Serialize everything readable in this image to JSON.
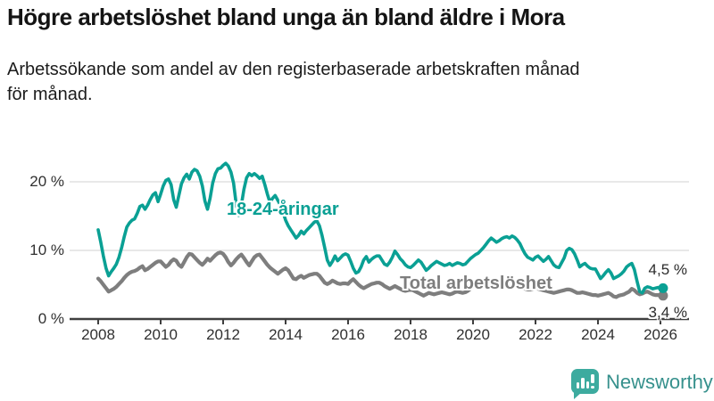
{
  "header": {
    "title": "Högre arbetslöshet bland unga än bland äldre i Mora",
    "subtitle_line1": "Arbetssökande som andel av den registerbaserade arbetskraften månad",
    "subtitle_line2": "för månad."
  },
  "footer": {
    "brand": "Newsworthy",
    "logo_icon": "bar-chart-speech-bubble-icon"
  },
  "colors": {
    "youth_line": "#0aa094",
    "total_line": "#7e7e7e",
    "gridline": "#e0e0e0",
    "axis": "#3f3f3f",
    "brand_icon_teal": "#3dab9f",
    "brand_wordmark": "#37918d"
  },
  "chart_data": {
    "type": "line",
    "title": "Högre arbetslöshet bland unga än bland äldre i Mora",
    "subtitle": "Arbetssökande som andel av den registerbaserade arbetskraften månad för månad.",
    "x_unit": "month",
    "x_start": "2008-01",
    "x_end": "2026-02",
    "xlabel": "",
    "ylabel": "",
    "ylim": [
      0,
      24
    ],
    "grid": "horizontal",
    "legend_position": "inline-labels",
    "x_ticks": [
      2008,
      2010,
      2012,
      2014,
      2016,
      2018,
      2020,
      2022,
      2024,
      2026
    ],
    "y_ticks": [
      {
        "value": 0,
        "label": "0 %"
      },
      {
        "value": 10,
        "label": "10 %"
      },
      {
        "value": 20,
        "label": "20 %"
      }
    ],
    "series": [
      {
        "name": "18-24-åringar",
        "color": "#0aa094",
        "stroke_width": 3.6,
        "end_label": "4,5 %",
        "end_value": 4.5,
        "values": [
          13.0,
          11.2,
          9.2,
          7.4,
          6.3,
          6.9,
          7.4,
          8.0,
          9.0,
          10.4,
          12.0,
          13.4,
          14.0,
          14.4,
          14.6,
          15.4,
          16.4,
          16.6,
          16.0,
          16.6,
          17.4,
          18.1,
          18.4,
          17.1,
          18.2,
          19.4,
          20.2,
          20.4,
          19.6,
          17.4,
          16.3,
          18.0,
          19.7,
          20.6,
          21.1,
          20.4,
          21.4,
          21.8,
          21.6,
          20.8,
          19.4,
          17.2,
          16.0,
          17.6,
          19.8,
          21.2,
          21.9,
          22.0,
          22.4,
          22.7,
          22.3,
          21.4,
          19.8,
          16.8,
          15.1,
          16.6,
          18.9,
          20.6,
          21.2,
          20.9,
          21.2,
          20.9,
          20.5,
          20.8,
          19.6,
          18.2,
          17.0,
          17.6,
          18.0,
          17.3,
          16.6,
          15.6,
          14.4,
          13.6,
          13.0,
          12.4,
          11.8,
          12.2,
          12.8,
          12.4,
          12.9,
          13.3,
          13.7,
          14.1,
          14.3,
          13.6,
          12.2,
          10.4,
          8.6,
          7.8,
          8.4,
          9.2,
          8.5,
          8.9,
          9.3,
          9.5,
          9.3,
          8.4,
          7.4,
          6.7,
          6.9,
          7.6,
          8.6,
          9.1,
          8.3,
          8.7,
          9.0,
          9.2,
          9.2,
          8.6,
          8.0,
          7.8,
          8.3,
          9.0,
          9.9,
          9.4,
          8.8,
          8.4,
          7.9,
          7.6,
          7.5,
          7.8,
          8.2,
          8.6,
          8.3,
          7.7,
          7.1,
          7.4,
          7.8,
          8.1,
          8.4,
          8.2,
          8.0,
          7.8,
          7.9,
          8.1,
          7.8,
          8.0,
          8.2,
          8.1,
          7.9,
          8.0,
          8.4,
          8.8,
          9.1,
          9.4,
          9.6,
          10.0,
          10.4,
          10.9,
          11.4,
          11.8,
          11.5,
          11.2,
          11.4,
          11.7,
          11.9,
          12.0,
          11.8,
          12.1,
          11.9,
          11.5,
          11.0,
          10.2,
          9.5,
          9.0,
          8.8,
          8.6,
          9.0,
          9.2,
          8.8,
          8.4,
          8.7,
          9.1,
          8.5,
          7.9,
          7.6,
          7.5,
          8.2,
          8.9,
          10.0,
          10.3,
          10.1,
          9.5,
          8.6,
          7.6,
          7.9,
          8.1,
          7.7,
          7.4,
          7.3,
          7.3,
          6.6,
          5.9,
          6.3,
          6.8,
          7.2,
          6.7,
          5.9,
          6.1,
          6.3,
          6.6,
          7.0,
          7.6,
          7.9,
          8.1,
          7.2,
          5.5,
          4.0,
          3.8,
          4.5,
          4.7,
          4.6,
          4.4,
          4.5,
          4.6,
          4.4,
          4.5
        ]
      },
      {
        "name": "Total arbetslöshet",
        "color": "#7e7e7e",
        "stroke_width": 4.2,
        "end_label": "3,4 %",
        "end_value": 3.4,
        "values": [
          5.9,
          5.5,
          5.0,
          4.5,
          4.0,
          4.2,
          4.4,
          4.7,
          5.1,
          5.5,
          6.0,
          6.4,
          6.7,
          6.9,
          7.0,
          7.2,
          7.5,
          7.7,
          7.1,
          7.3,
          7.6,
          7.9,
          8.2,
          8.4,
          8.4,
          8.0,
          7.6,
          7.9,
          8.4,
          8.7,
          8.5,
          7.9,
          7.6,
          8.3,
          9.0,
          9.5,
          9.4,
          9.0,
          8.6,
          8.2,
          7.9,
          8.3,
          8.8,
          8.5,
          8.9,
          9.3,
          9.6,
          9.7,
          9.5,
          9.0,
          8.3,
          7.8,
          8.2,
          8.7,
          9.1,
          9.4,
          8.9,
          8.3,
          7.8,
          8.4,
          9.0,
          9.3,
          9.4,
          8.9,
          8.4,
          7.9,
          7.5,
          7.2,
          6.9,
          6.6,
          6.9,
          7.2,
          7.4,
          7.1,
          6.5,
          5.9,
          5.8,
          6.1,
          6.3,
          6.0,
          6.2,
          6.4,
          6.5,
          6.6,
          6.6,
          6.3,
          5.8,
          5.3,
          5.1,
          5.3,
          5.6,
          5.4,
          5.2,
          5.1,
          5.2,
          5.2,
          5.1,
          5.5,
          5.8,
          5.4,
          5.0,
          4.7,
          4.5,
          4.7,
          4.9,
          5.1,
          5.2,
          5.3,
          5.3,
          5.1,
          4.8,
          4.6,
          4.4,
          4.6,
          4.8,
          4.6,
          4.4,
          4.2,
          4.1,
          4.2,
          4.3,
          4.2,
          4.0,
          3.8,
          3.6,
          3.4,
          3.6,
          3.8,
          3.7,
          3.6,
          3.7,
          3.8,
          3.9,
          3.8,
          3.7,
          3.6,
          3.7,
          3.9,
          4.0,
          3.9,
          3.8,
          3.9,
          4.1,
          4.4,
          4.6,
          4.8,
          5.0,
          5.3,
          5.5,
          5.6,
          5.5,
          5.4,
          5.2,
          5.1,
          5.2,
          5.3,
          5.4,
          5.5,
          5.3,
          5.2,
          5.0,
          4.9,
          4.7,
          4.5,
          4.4,
          4.3,
          4.3,
          4.4,
          4.5,
          4.4,
          4.3,
          4.2,
          4.1,
          4.0,
          3.9,
          3.8,
          3.9,
          4.0,
          4.1,
          4.2,
          4.3,
          4.3,
          4.2,
          4.0,
          3.8,
          3.8,
          3.9,
          3.8,
          3.7,
          3.6,
          3.5,
          3.5,
          3.4,
          3.5,
          3.6,
          3.7,
          3.8,
          3.6,
          3.3,
          3.2,
          3.4,
          3.5,
          3.6,
          3.8,
          4.0,
          4.4,
          4.2,
          3.8,
          3.6,
          3.7,
          3.9,
          4.0,
          3.8,
          3.6,
          3.5,
          3.5,
          3.4,
          3.4
        ]
      }
    ]
  }
}
